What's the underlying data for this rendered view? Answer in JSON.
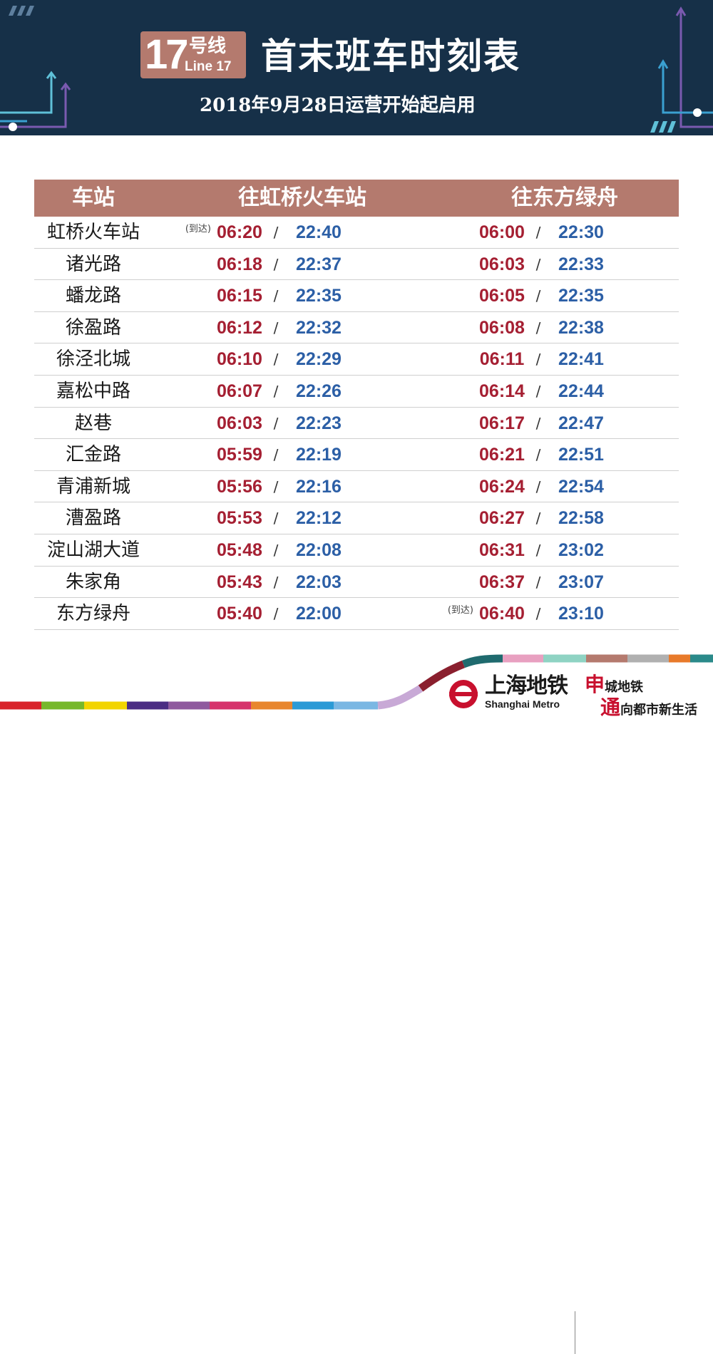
{
  "header": {
    "line_number": "17",
    "line_cn": "号线",
    "line_en": "Line 17",
    "title": "首末班车时刻表",
    "subtitle": "2018年9月28日运营开始起启用"
  },
  "table": {
    "col_station": "车站",
    "col_dir1": "往虹桥火车站",
    "col_dir2": "往东方绿舟",
    "arrival_note": "(到达)",
    "slash": "/",
    "rows": [
      {
        "station": "虹桥火车站",
        "note1": "(到达)",
        "dir1_first": "06:20",
        "dir1_last": "22:40",
        "note2": "",
        "dir2_first": "06:00",
        "dir2_last": "22:30"
      },
      {
        "station": "诸光路",
        "note1": "",
        "dir1_first": "06:18",
        "dir1_last": "22:37",
        "note2": "",
        "dir2_first": "06:03",
        "dir2_last": "22:33"
      },
      {
        "station": "蟠龙路",
        "note1": "",
        "dir1_first": "06:15",
        "dir1_last": "22:35",
        "note2": "",
        "dir2_first": "06:05",
        "dir2_last": "22:35"
      },
      {
        "station": "徐盈路",
        "note1": "",
        "dir1_first": "06:12",
        "dir1_last": "22:32",
        "note2": "",
        "dir2_first": "06:08",
        "dir2_last": "22:38"
      },
      {
        "station": "徐泾北城",
        "note1": "",
        "dir1_first": "06:10",
        "dir1_last": "22:29",
        "note2": "",
        "dir2_first": "06:11",
        "dir2_last": "22:41"
      },
      {
        "station": "嘉松中路",
        "note1": "",
        "dir1_first": "06:07",
        "dir1_last": "22:26",
        "note2": "",
        "dir2_first": "06:14",
        "dir2_last": "22:44"
      },
      {
        "station": "赵巷",
        "note1": "",
        "dir1_first": "06:03",
        "dir1_last": "22:23",
        "note2": "",
        "dir2_first": "06:17",
        "dir2_last": "22:47"
      },
      {
        "station": "汇金路",
        "note1": "",
        "dir1_first": "05:59",
        "dir1_last": "22:19",
        "note2": "",
        "dir2_first": "06:21",
        "dir2_last": "22:51"
      },
      {
        "station": "青浦新城",
        "note1": "",
        "dir1_first": "05:56",
        "dir1_last": "22:16",
        "note2": "",
        "dir2_first": "06:24",
        "dir2_last": "22:54"
      },
      {
        "station": "漕盈路",
        "note1": "",
        "dir1_first": "05:53",
        "dir1_last": "22:12",
        "note2": "",
        "dir2_first": "06:27",
        "dir2_last": "22:58"
      },
      {
        "station": "淀山湖大道",
        "note1": "",
        "dir1_first": "05:48",
        "dir1_last": "22:08",
        "note2": "",
        "dir2_first": "06:31",
        "dir2_last": "23:02"
      },
      {
        "station": "朱家角",
        "note1": "",
        "dir1_first": "05:43",
        "dir1_last": "22:03",
        "note2": "",
        "dir2_first": "06:37",
        "dir2_last": "23:07"
      },
      {
        "station": "东方绿舟",
        "note1": "",
        "dir1_first": "05:40",
        "dir1_last": "22:00",
        "note2": "(到达)",
        "dir2_first": "06:40",
        "dir2_last": "23:10"
      }
    ]
  },
  "footer": {
    "brand_cn": "上海地铁",
    "brand_en": "Shanghai Metro",
    "slogan1_big": "申",
    "slogan1_rest": "城地铁",
    "slogan2_big": "通",
    "slogan2_rest": "向都市新生活"
  },
  "colors": {
    "header_bg": "#163048",
    "accent": "#b47a6e",
    "first_train": "#a51f32",
    "last_train": "#2c5fa6",
    "brand_red": "#c8102e"
  }
}
